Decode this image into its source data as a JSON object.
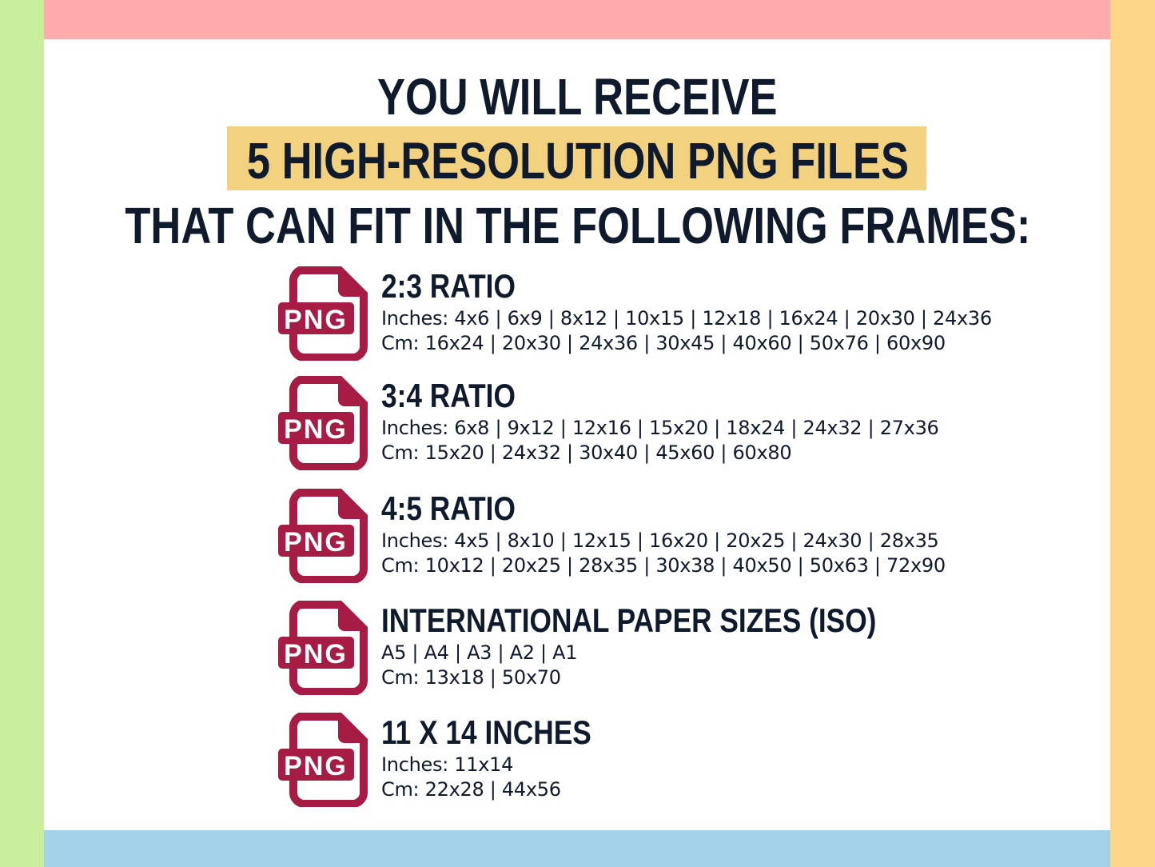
{
  "colors": {
    "left": "#c9ee9c",
    "right": "#fdd68a",
    "top": "#ffaaac",
    "bottom": "#a3d1e8",
    "highlight": "#f2d27e",
    "icon": "#a61c45",
    "text": "#0f1b2d"
  },
  "header": {
    "line1": "YOU WILL RECEIVE",
    "line2": "5 HIGH-RESOLUTION PNG FILES",
    "line3": "THAT CAN FIT IN THE FOLLOWING FRAMES:"
  },
  "icon": {
    "name": "png-file-icon",
    "label": "PNG"
  },
  "items": [
    {
      "title": "2:3 RATIO",
      "line1": "Inches: 4x6 | 6x9 | 8x12 | 10x15 | 12x18 | 16x24 | 20x30 | 24x36",
      "line2": "Cm: 16x24 | 20x30 | 24x36 | 30x45 | 40x60 | 50x76 | 60x90"
    },
    {
      "title": "3:4 RATIO",
      "line1": "Inches: 6x8 | 9x12 | 12x16 | 15x20 | 18x24 | 24x32 | 27x36",
      "line2": "Cm: 15x20 | 24x32 | 30x40 | 45x60 | 60x80"
    },
    {
      "title": "4:5 RATIO",
      "line1": "Inches: 4x5 | 8x10 | 12x15 | 16x20 | 20x25 | 24x30 | 28x35",
      "line2": "Cm: 10x12 | 20x25 | 28x35 | 30x38 | 40x50 | 50x63 | 72x90"
    },
    {
      "title": "INTERNATIONAL PAPER SIZES (ISO)",
      "line1": "A5 | A4 | A3 | A2 | A1",
      "line2": "Cm: 13x18 | 50x70"
    },
    {
      "title": "11 X 14 INCHES",
      "line1": "Inches: 11x14",
      "line2": "Cm: 22x28 | 44x56"
    }
  ]
}
